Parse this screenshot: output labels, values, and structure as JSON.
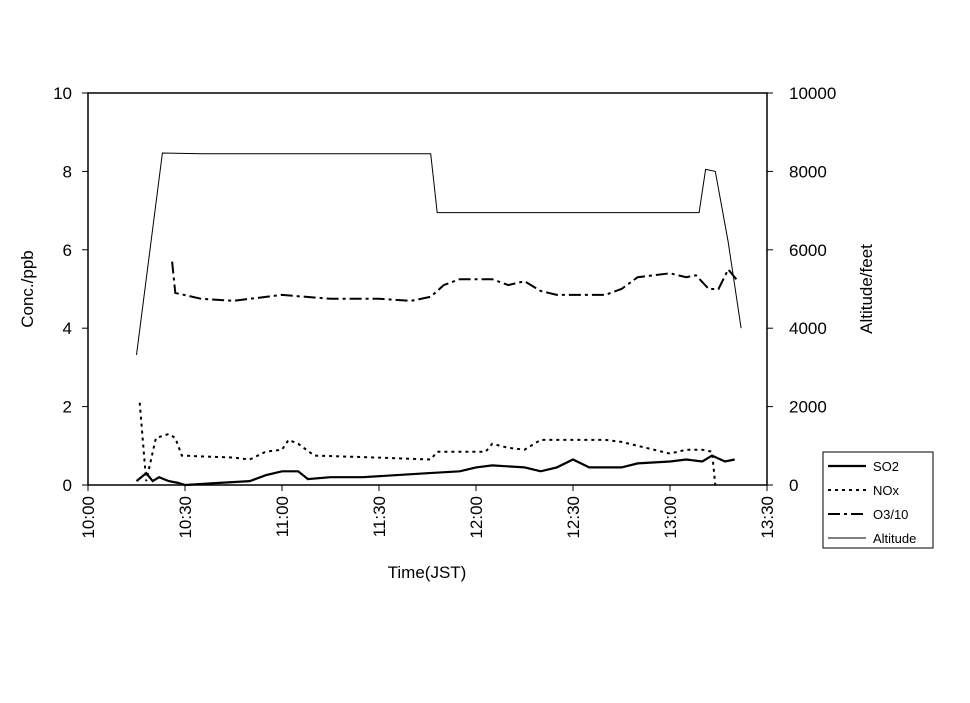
{
  "chart_data": {
    "type": "line",
    "xlabel": "Time(JST)",
    "ylabel": "Conc./ppb",
    "y2label": "Altitude/feet",
    "xlim": [
      "10:00",
      "13:30"
    ],
    "xticks": [
      "10:00",
      "10:30",
      "11:00",
      "11:30",
      "12:00",
      "12:30",
      "13:00",
      "13:30"
    ],
    "ylim": [
      0,
      10
    ],
    "yticks": [
      0,
      2,
      4,
      6,
      8,
      10
    ],
    "y2lim": [
      0,
      10000
    ],
    "y2ticks": [
      0,
      2000,
      4000,
      6000,
      8000,
      10000
    ],
    "legend": "right",
    "series": [
      {
        "name": "SO2",
        "color": "#000000",
        "style": "solid",
        "width": 2.2,
        "x": [
          "10:15",
          "10:18",
          "10:20",
          "10:22",
          "10:25",
          "10:28",
          "10:30",
          "10:40",
          "10:50",
          "10:55",
          "11:00",
          "11:05",
          "11:08",
          "11:15",
          "11:25",
          "11:35",
          "11:45",
          "11:55",
          "12:00",
          "12:05",
          "12:15",
          "12:20",
          "12:25",
          "12:30",
          "12:35",
          "12:45",
          "12:50",
          "13:00",
          "13:05",
          "13:10",
          "13:13",
          "13:17",
          "13:20"
        ],
        "values": [
          0.1,
          0.3,
          0.1,
          0.2,
          0.1,
          0.05,
          0,
          0.05,
          0.1,
          0.25,
          0.35,
          0.35,
          0.15,
          0.2,
          0.2,
          0.25,
          0.3,
          0.35,
          0.45,
          0.5,
          0.45,
          0.35,
          0.45,
          0.65,
          0.45,
          0.45,
          0.55,
          0.6,
          0.65,
          0.6,
          0.75,
          0.6,
          0.65
        ]
      },
      {
        "name": "NOx",
        "color": "#000000",
        "style": "dotted",
        "width": 2,
        "x": [
          "10:16",
          "10:18",
          "10:21",
          "10:25",
          "10:27",
          "10:29",
          "10:45",
          "10:50",
          "10:55",
          "11:00",
          "11:02",
          "11:05",
          "11:10",
          "11:30",
          "11:46",
          "11:48",
          "12:03",
          "12:05",
          "12:10",
          "12:15",
          "12:20",
          "12:40",
          "12:45",
          "12:55",
          "13:00",
          "13:05",
          "13:10",
          "13:13",
          "13:14"
        ],
        "values": [
          2.1,
          0.1,
          1.2,
          1.3,
          1.2,
          0.75,
          0.7,
          0.65,
          0.85,
          0.9,
          1.15,
          1.05,
          0.75,
          0.7,
          0.65,
          0.85,
          0.85,
          1.05,
          0.95,
          0.9,
          1.15,
          1.15,
          1.1,
          0.9,
          0.8,
          0.9,
          0.9,
          0.85,
          0
        ]
      },
      {
        "name": "O3/10",
        "color": "#000000",
        "style": "dashdot",
        "width": 2,
        "x": [
          "10:26",
          "10:27",
          "10:35",
          "10:45",
          "11:00",
          "11:15",
          "11:30",
          "11:40",
          "11:46",
          "11:50",
          "11:55",
          "12:05",
          "12:10",
          "12:15",
          "12:20",
          "12:25",
          "12:40",
          "12:45",
          "12:50",
          "13:00",
          "13:05",
          "13:08",
          "13:12",
          "13:15",
          "13:18",
          "13:21"
        ],
        "values": [
          5.7,
          4.9,
          4.75,
          4.7,
          4.85,
          4.75,
          4.75,
          4.7,
          4.8,
          5.1,
          5.25,
          5.25,
          5.1,
          5.2,
          4.95,
          4.85,
          4.85,
          5,
          5.3,
          5.4,
          5.3,
          5.35,
          5,
          5,
          5.5,
          5.2
        ]
      },
      {
        "name": "Altitude",
        "color": "#000000",
        "style": "solid",
        "width": 1,
        "axis": "y2",
        "x": [
          "10:15",
          "10:23",
          "10:35",
          "11:00",
          "11:30",
          "11:46",
          "11:48",
          "12:00",
          "12:30",
          "13:00",
          "13:09",
          "13:11",
          "13:14",
          "13:18",
          "13:22"
        ],
        "values": [
          3320,
          8470,
          8450,
          8450,
          8450,
          8450,
          6950,
          6950,
          6950,
          6950,
          6950,
          8050,
          8000,
          6200,
          4000
        ]
      }
    ]
  }
}
